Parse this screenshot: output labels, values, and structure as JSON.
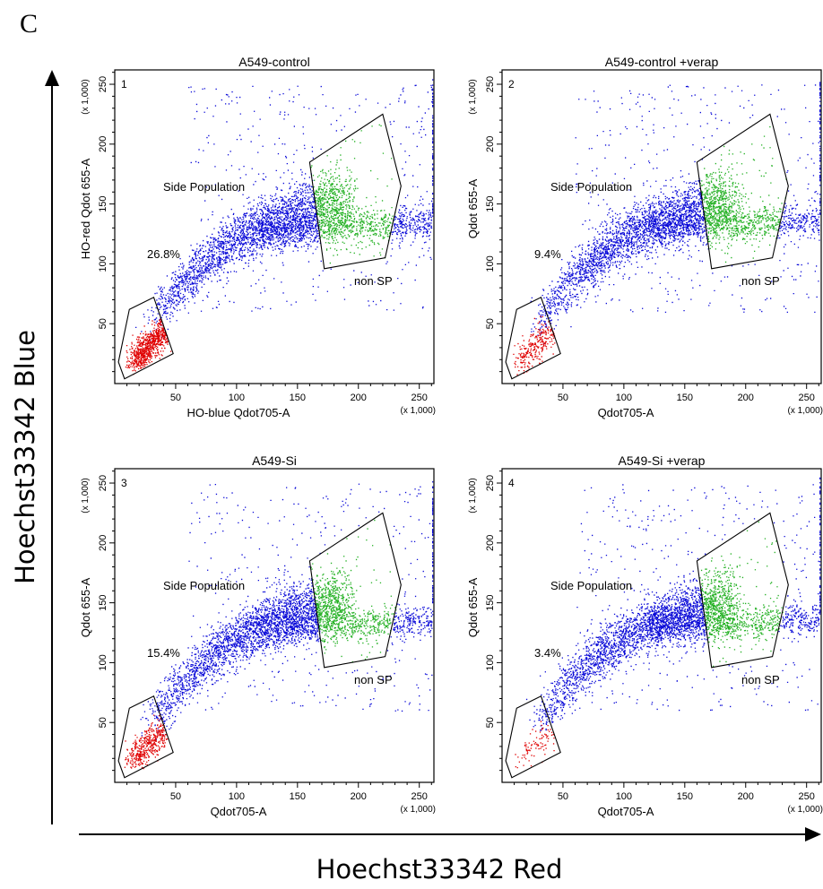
{
  "figure": {
    "panel_letter": "C",
    "y_axis_title": "Hoechst33342 Blue",
    "x_axis_title": "Hoechst33342 Red"
  },
  "chart_data": [
    {
      "type": "scatter",
      "number": "1",
      "title": "A549-control",
      "xlabel": "HO-blue Qdot705-A",
      "ylabel": "HO-red Qdot 655-A",
      "x_scale": "(x 1,000)",
      "y_scale": "(x 1,000)",
      "xlim": [
        0,
        262
      ],
      "ylim": [
        0,
        262
      ],
      "xticks": [
        50,
        100,
        150,
        200,
        250
      ],
      "yticks": [
        50,
        100,
        150,
        200,
        250
      ],
      "annotations": {
        "side_population": "Side Population",
        "percent": "26.8%",
        "non_sp": "non SP"
      },
      "sp_fraction": 0.268,
      "verapamil": false,
      "series": [
        {
          "name": "Side Population",
          "color": "#e00000"
        },
        {
          "name": "non SP",
          "color": "#22b022"
        },
        {
          "color": "#0a0ad8"
        }
      ],
      "sp_gate": [
        [
          12,
          62
        ],
        [
          3,
          18
        ],
        [
          8,
          4
        ],
        [
          48,
          25
        ],
        [
          32,
          72
        ]
      ],
      "nonsp_gate": [
        [
          160,
          185
        ],
        [
          220,
          225
        ],
        [
          235,
          165
        ],
        [
          222,
          105
        ],
        [
          172,
          96
        ]
      ]
    },
    {
      "type": "scatter",
      "number": "2",
      "title": "A549-control +verap",
      "xlabel": "Qdot705-A",
      "ylabel": "Qdot 655-A",
      "x_scale": "(x 1,000)",
      "y_scale": "(x 1,000)",
      "xlim": [
        0,
        262
      ],
      "ylim": [
        0,
        262
      ],
      "xticks": [
        50,
        100,
        150,
        200,
        250
      ],
      "yticks": [
        50,
        100,
        150,
        200,
        250
      ],
      "annotations": {
        "side_population": "Side Population",
        "percent": "9.4%",
        "non_sp": "non SP"
      },
      "sp_fraction": 0.094,
      "verapamil": true,
      "series": [
        {
          "name": "Side Population",
          "color": "#e00000"
        },
        {
          "name": "non SP",
          "color": "#22b022"
        },
        {
          "color": "#0a0ad8"
        }
      ],
      "sp_gate": [
        [
          12,
          62
        ],
        [
          3,
          18
        ],
        [
          8,
          4
        ],
        [
          48,
          25
        ],
        [
          32,
          72
        ]
      ],
      "nonsp_gate": [
        [
          160,
          185
        ],
        [
          220,
          225
        ],
        [
          235,
          165
        ],
        [
          222,
          105
        ],
        [
          172,
          96
        ]
      ]
    },
    {
      "type": "scatter",
      "number": "3",
      "title": "A549-Si",
      "xlabel": "Qdot705-A",
      "ylabel": "Qdot 655-A",
      "x_scale": "(x 1,000)",
      "y_scale": "(x 1,000)",
      "xlim": [
        0,
        262
      ],
      "ylim": [
        0,
        262
      ],
      "xticks": [
        50,
        100,
        150,
        200,
        250
      ],
      "yticks": [
        50,
        100,
        150,
        200,
        250
      ],
      "annotations": {
        "side_population": "Side Population",
        "percent": "15.4%",
        "non_sp": "non SP"
      },
      "sp_fraction": 0.154,
      "verapamil": false,
      "series": [
        {
          "name": "Side Population",
          "color": "#e00000"
        },
        {
          "name": "non SP",
          "color": "#22b022"
        },
        {
          "color": "#0a0ad8"
        }
      ],
      "sp_gate": [
        [
          12,
          62
        ],
        [
          3,
          18
        ],
        [
          8,
          4
        ],
        [
          48,
          25
        ],
        [
          32,
          72
        ]
      ],
      "nonsp_gate": [
        [
          160,
          185
        ],
        [
          220,
          225
        ],
        [
          235,
          165
        ],
        [
          222,
          105
        ],
        [
          172,
          96
        ]
      ]
    },
    {
      "type": "scatter",
      "number": "4",
      "title": "A549-Si +verap",
      "xlabel": "Qdot705-A",
      "ylabel": "Qdot 655-A",
      "x_scale": "(x 1,000)",
      "y_scale": "(x 1,000)",
      "xlim": [
        0,
        262
      ],
      "ylim": [
        0,
        262
      ],
      "xticks": [
        50,
        100,
        150,
        200,
        250
      ],
      "yticks": [
        50,
        100,
        150,
        200,
        250
      ],
      "annotations": {
        "side_population": "Side Population",
        "percent": "3.4%",
        "non_sp": "non SP"
      },
      "sp_fraction": 0.034,
      "verapamil": true,
      "series": [
        {
          "name": "Side Population",
          "color": "#e00000"
        },
        {
          "name": "non SP",
          "color": "#22b022"
        },
        {
          "color": "#0a0ad8"
        }
      ],
      "sp_gate": [
        [
          12,
          62
        ],
        [
          3,
          18
        ],
        [
          8,
          4
        ],
        [
          48,
          25
        ],
        [
          32,
          72
        ]
      ],
      "nonsp_gate": [
        [
          160,
          185
        ],
        [
          220,
          225
        ],
        [
          235,
          165
        ],
        [
          222,
          105
        ],
        [
          172,
          96
        ]
      ]
    }
  ]
}
